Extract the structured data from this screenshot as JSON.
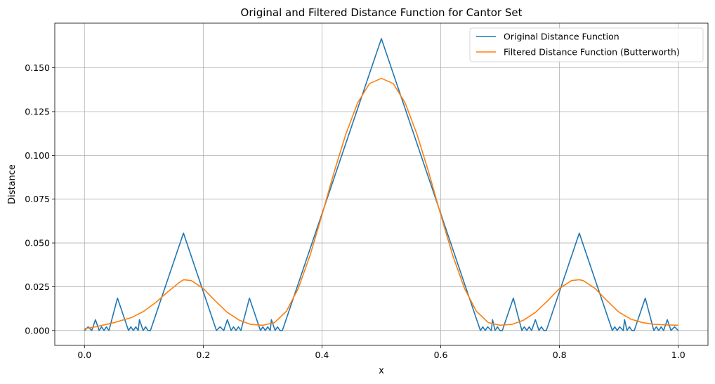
{
  "chart_data": {
    "type": "line",
    "title": "Original and Filtered Distance Function for Cantor Set",
    "xlabel": "x",
    "ylabel": "Distance",
    "xlim": [
      -0.05,
      1.05
    ],
    "ylim": [
      -0.0085,
      0.1755
    ],
    "xticks": [
      0.0,
      0.2,
      0.4,
      0.6,
      0.8,
      1.0
    ],
    "xtick_labels": [
      "0.0",
      "0.2",
      "0.4",
      "0.6",
      "0.8",
      "1.0"
    ],
    "yticks": [
      0.0,
      0.025,
      0.05,
      0.075,
      0.1,
      0.125,
      0.15
    ],
    "ytick_labels": [
      "0.000",
      "0.025",
      "0.050",
      "0.075",
      "0.100",
      "0.125",
      "0.150"
    ],
    "grid": true,
    "legend_position": "top-right",
    "series": [
      {
        "name": "Original Distance Function",
        "color": "#1f77b4",
        "points": [
          [
            0.0,
            0.0
          ],
          [
            0.0062,
            0.0021
          ],
          [
            0.0123,
            0.0
          ],
          [
            0.0185,
            0.0062
          ],
          [
            0.0247,
            0.0
          ],
          [
            0.0288,
            0.0021
          ],
          [
            0.0329,
            0.0
          ],
          [
            0.037,
            0.0021
          ],
          [
            0.0412,
            0.0
          ],
          [
            0.0556,
            0.0185
          ],
          [
            0.0741,
            0.0
          ],
          [
            0.0782,
            0.0021
          ],
          [
            0.0823,
            0.0
          ],
          [
            0.0864,
            0.0021
          ],
          [
            0.0905,
            0.0
          ],
          [
            0.0926,
            0.0062
          ],
          [
            0.0988,
            0.0
          ],
          [
            0.1029,
            0.0021
          ],
          [
            0.107,
            0.0
          ],
          [
            0.1111,
            0.0
          ],
          [
            0.1667,
            0.0556
          ],
          [
            0.2222,
            0.0
          ],
          [
            0.2284,
            0.0021
          ],
          [
            0.2346,
            0.0
          ],
          [
            0.2407,
            0.0062
          ],
          [
            0.2469,
            0.0
          ],
          [
            0.251,
            0.0021
          ],
          [
            0.2551,
            0.0
          ],
          [
            0.2593,
            0.0021
          ],
          [
            0.2634,
            0.0
          ],
          [
            0.2778,
            0.0185
          ],
          [
            0.2963,
            0.0
          ],
          [
            0.3004,
            0.0021
          ],
          [
            0.3045,
            0.0
          ],
          [
            0.3086,
            0.0021
          ],
          [
            0.3128,
            0.0
          ],
          [
            0.3148,
            0.0062
          ],
          [
            0.321,
            0.0
          ],
          [
            0.3251,
            0.0021
          ],
          [
            0.3292,
            0.0
          ],
          [
            0.3333,
            0.0
          ],
          [
            0.5,
            0.1667
          ],
          [
            0.6667,
            0.0
          ],
          [
            0.6708,
            0.0021
          ],
          [
            0.6749,
            0.0
          ],
          [
            0.679,
            0.0021
          ],
          [
            0.6852,
            0.0
          ],
          [
            0.6872,
            0.0062
          ],
          [
            0.6914,
            0.0
          ],
          [
            0.6955,
            0.0021
          ],
          [
            0.6996,
            0.0
          ],
          [
            0.7037,
            0.0
          ],
          [
            0.7222,
            0.0185
          ],
          [
            0.7366,
            0.0
          ],
          [
            0.7407,
            0.0021
          ],
          [
            0.7449,
            0.0
          ],
          [
            0.749,
            0.0021
          ],
          [
            0.7531,
            0.0
          ],
          [
            0.7593,
            0.0062
          ],
          [
            0.7654,
            0.0
          ],
          [
            0.7695,
            0.0021
          ],
          [
            0.7737,
            0.0
          ],
          [
            0.7778,
            0.0
          ],
          [
            0.8333,
            0.0556
          ],
          [
            0.8889,
            0.0
          ],
          [
            0.893,
            0.0021
          ],
          [
            0.8971,
            0.0
          ],
          [
            0.9012,
            0.0021
          ],
          [
            0.9074,
            0.0
          ],
          [
            0.9095,
            0.0062
          ],
          [
            0.9136,
            0.0
          ],
          [
            0.9177,
            0.0021
          ],
          [
            0.9218,
            0.0
          ],
          [
            0.9259,
            0.0
          ],
          [
            0.9444,
            0.0185
          ],
          [
            0.9588,
            0.0
          ],
          [
            0.963,
            0.0021
          ],
          [
            0.9671,
            0.0
          ],
          [
            0.9712,
            0.0021
          ],
          [
            0.9753,
            0.0
          ],
          [
            0.9815,
            0.0062
          ],
          [
            0.9877,
            0.0
          ],
          [
            0.9938,
            0.0021
          ],
          [
            1.0,
            0.0
          ]
        ]
      },
      {
        "name": "Filtered Distance Function (Butterworth)",
        "color": "#ff7f0e",
        "points": [
          [
            0.0,
            0.001
          ],
          [
            0.02,
            0.0022
          ],
          [
            0.05,
            0.0045
          ],
          [
            0.08,
            0.0075
          ],
          [
            0.1,
            0.011
          ],
          [
            0.12,
            0.016
          ],
          [
            0.14,
            0.022
          ],
          [
            0.16,
            0.0275
          ],
          [
            0.167,
            0.029
          ],
          [
            0.18,
            0.0285
          ],
          [
            0.2,
            0.024
          ],
          [
            0.22,
            0.017
          ],
          [
            0.24,
            0.0105
          ],
          [
            0.26,
            0.006
          ],
          [
            0.28,
            0.0035
          ],
          [
            0.3,
            0.003
          ],
          [
            0.32,
            0.0045
          ],
          [
            0.34,
            0.011
          ],
          [
            0.36,
            0.024
          ],
          [
            0.38,
            0.043
          ],
          [
            0.4,
            0.066
          ],
          [
            0.42,
            0.09
          ],
          [
            0.44,
            0.112
          ],
          [
            0.46,
            0.13
          ],
          [
            0.48,
            0.141
          ],
          [
            0.5,
            0.144
          ],
          [
            0.52,
            0.141
          ],
          [
            0.54,
            0.13
          ],
          [
            0.56,
            0.112
          ],
          [
            0.58,
            0.09
          ],
          [
            0.6,
            0.066
          ],
          [
            0.62,
            0.043
          ],
          [
            0.64,
            0.024
          ],
          [
            0.66,
            0.011
          ],
          [
            0.68,
            0.0045
          ],
          [
            0.7,
            0.003
          ],
          [
            0.72,
            0.0035
          ],
          [
            0.74,
            0.006
          ],
          [
            0.76,
            0.0105
          ],
          [
            0.78,
            0.017
          ],
          [
            0.8,
            0.024
          ],
          [
            0.82,
            0.0285
          ],
          [
            0.833,
            0.029
          ],
          [
            0.84,
            0.0285
          ],
          [
            0.86,
            0.024
          ],
          [
            0.88,
            0.017
          ],
          [
            0.9,
            0.0105
          ],
          [
            0.92,
            0.0065
          ],
          [
            0.94,
            0.0045
          ],
          [
            0.96,
            0.0035
          ],
          [
            0.98,
            0.0032
          ],
          [
            1.0,
            0.003
          ]
        ]
      }
    ]
  }
}
